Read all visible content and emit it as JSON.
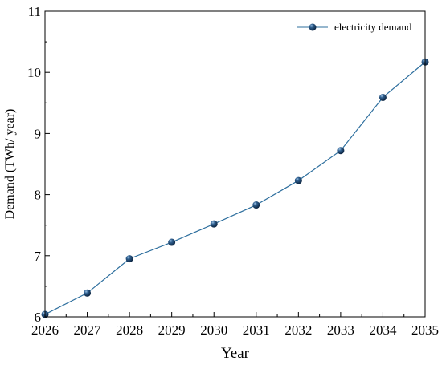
{
  "chart_data": {
    "type": "line",
    "title": "",
    "xlabel": "Year",
    "ylabel": "Demand (TWh/ year)",
    "x": [
      2026,
      2027,
      2028,
      2029,
      2030,
      2031,
      2032,
      2033,
      2034,
      2035
    ],
    "xticks": [
      "2026",
      "2027",
      "2028",
      "2029",
      "2030",
      "2031",
      "2032",
      "2033",
      "2034",
      "2035"
    ],
    "yticks": [
      "6",
      "7",
      "8",
      "9",
      "10",
      "11"
    ],
    "xlim": [
      2026,
      2035
    ],
    "ylim": [
      6,
      11
    ],
    "grid": false,
    "legend_position": "top-right",
    "series": [
      {
        "name": "electricity demand",
        "color": "#2e6f9e",
        "marker_color": "#1a3a5c",
        "marker": "sphere",
        "values": [
          6.04,
          6.39,
          6.95,
          7.22,
          7.52,
          7.83,
          8.23,
          8.72,
          9.59,
          10.17
        ]
      }
    ]
  }
}
